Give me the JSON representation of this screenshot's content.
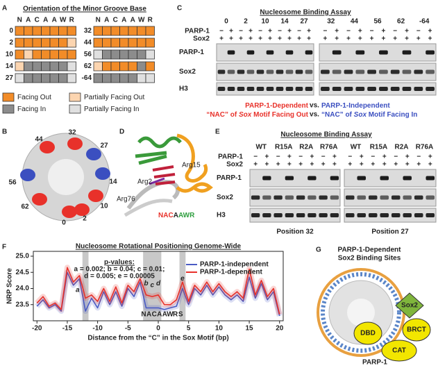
{
  "panel_labels": [
    "A",
    "B",
    "C",
    "D",
    "E",
    "F",
    "G"
  ],
  "panel_a": {
    "title": "Orientation of the Minor Groove Base",
    "motif_letters": [
      "N",
      "A",
      "C",
      "A",
      "A",
      "W",
      "R"
    ],
    "motif_colors": [
      "#e8312a",
      "#e8312a",
      "#e8312a",
      "#222222",
      "#2e9e3e",
      "#2e9e3e",
      "#2e9e3e"
    ],
    "rows_left": [
      {
        "label": "0",
        "color": "#e8312a",
        "boxes": [
          "#f28c28",
          "#f28c28",
          "#f28c28",
          "#f28c28",
          "#f28c28",
          "#f28c28",
          "#f28c28"
        ]
      },
      {
        "label": "2",
        "color": "#e8312a",
        "boxes": [
          "#f28c28",
          "#f28c28",
          "#f28c28",
          "#f28c28",
          "#f28c28",
          "#f28c28",
          "#fcd5b0"
        ]
      },
      {
        "label": "10",
        "color": "#e8312a",
        "boxes": [
          "#f28c28",
          "#fcd5b0",
          "#f28c28",
          "#f28c28",
          "#f28c28",
          "#f28c28",
          "#f28c28"
        ]
      },
      {
        "label": "14",
        "color": "#3b4fc0",
        "boxes": [
          "#fcd5b0",
          "#8c8c8c",
          "#8c8c8c",
          "#8c8c8c",
          "#8c8c8c",
          "#8c8c8c",
          "#e0e0e0"
        ]
      },
      {
        "label": "27",
        "color": "#3b4fc0",
        "boxes": [
          "#e0e0e0",
          "#8c8c8c",
          "#8c8c8c",
          "#8c8c8c",
          "#8c8c8c",
          "#8c8c8c",
          "#e0e0e0"
        ]
      }
    ],
    "rows_right": [
      {
        "label": "32",
        "color": "#e8312a",
        "boxes": [
          "#f28c28",
          "#f28c28",
          "#f28c28",
          "#f28c28",
          "#f28c28",
          "#f28c28",
          "#f28c28"
        ]
      },
      {
        "label": "44",
        "color": "#e8312a",
        "boxes": [
          "#f28c28",
          "#f28c28",
          "#f28c28",
          "#f28c28",
          "#f28c28",
          "#f28c28",
          "#f28c28"
        ]
      },
      {
        "label": "56",
        "color": "#3b4fc0",
        "boxes": [
          "#e0e0e0",
          "#8c8c8c",
          "#8c8c8c",
          "#8c8c8c",
          "#8c8c8c",
          "#8c8c8c",
          "#e0e0e0"
        ]
      },
      {
        "label": "62",
        "color": "#3b4fc0",
        "boxes": [
          "#fcd5b0",
          "#f28c28",
          "#f28c28",
          "#f28c28",
          "#f28c28",
          "#8c8c8c",
          "#f28c28"
        ]
      },
      {
        "label": "-64",
        "color": "#3b4fc0",
        "boxes": [
          "#8c8c8c",
          "#8c8c8c",
          "#8c8c8c",
          "#8c8c8c",
          "#8c8c8c",
          "#e0e0e0",
          "#e0e0e0"
        ]
      }
    ],
    "legend": [
      {
        "label": "Facing Out",
        "color": "#f28c28"
      },
      {
        "label": "Partially Facing Out",
        "color": "#fcd5b0"
      },
      {
        "label": "Facing In",
        "color": "#8c8c8c"
      },
      {
        "label": "Partially Facing In",
        "color": "#e0e0e0"
      }
    ]
  },
  "panel_b": {
    "sites": [
      {
        "label": "32",
        "color": "#e8312a"
      },
      {
        "label": "44",
        "color": "#e8312a"
      },
      {
        "label": "27",
        "color": "#3b4fc0"
      },
      {
        "label": "56",
        "color": "#3b4fc0"
      },
      {
        "label": "14",
        "color": "#3b4fc0"
      },
      {
        "label": "62",
        "color": "#e8312a"
      },
      {
        "label": "10",
        "color": "#e8312a"
      },
      {
        "label": "0",
        "color": "#e8312a"
      },
      {
        "label": "2",
        "color": "#e8312a"
      }
    ]
  },
  "panel_c": {
    "title": "Nucleosome Binding Assay",
    "positions": [
      {
        "label": "0",
        "color": "#e8312a"
      },
      {
        "label": "2",
        "color": "#e8312a"
      },
      {
        "label": "10",
        "color": "#e8312a"
      },
      {
        "label": "14",
        "color": "#3b4fc0"
      },
      {
        "label": "27",
        "color": "#3b4fc0"
      },
      {
        "label": "32",
        "color": "#e8312a"
      },
      {
        "label": "44",
        "color": "#e8312a"
      },
      {
        "label": "56",
        "color": "#3b4fc0"
      },
      {
        "label": "62",
        "color": "#e8312a"
      },
      {
        "label": "-64",
        "color": "#3b4fc0"
      }
    ],
    "treatment_rows": [
      "PARP-1",
      "Sox2"
    ],
    "parp_signs": [
      "−",
      "+"
    ],
    "sox_sign": "+",
    "blot_rows": [
      "PARP-1",
      "Sox2",
      "H3"
    ],
    "captions": [
      {
        "left": [
          {
            "text": "PARP-1-Dependent"
          }
        ],
        "mid": "vs.",
        "right": [
          {
            "text": "PARP-1-Independent"
          }
        ]
      },
      {
        "left": [
          {
            "text": "“NAC” of "
          },
          {
            "text": "Sox",
            "italic": true
          },
          {
            "text": " Motif Facing Out"
          }
        ],
        "mid": "vs.",
        "right": [
          {
            "text": "“NAC” of "
          },
          {
            "text": "Sox",
            "italic": true
          },
          {
            "text": " Motif Facing In"
          }
        ]
      }
    ],
    "left_color": "#e8312a",
    "right_color": "#3b4fc0"
  },
  "panel_d": {
    "labels": [
      "Arg2",
      "Arg15",
      "Arg76"
    ],
    "motif_letters": [
      "N",
      "A",
      "C",
      "A",
      "A",
      "W",
      "R"
    ],
    "motif_colors": [
      "#e8312a",
      "#e8312a",
      "#e8312a",
      "#222222",
      "#2e9e3e",
      "#2e9e3e",
      "#2e9e3e"
    ]
  },
  "panel_e": {
    "title": "Nucleosome Binding Assay",
    "groups": [
      "WT",
      "R15A",
      "R2A",
      "R76A"
    ],
    "treatment_rows": [
      "PARP-1",
      "Sox2"
    ],
    "parp_signs": [
      "−",
      "+"
    ],
    "sox_sign": "+",
    "blot_rows": [
      "PARP-1",
      "Sox2",
      "H3"
    ],
    "positions": [
      {
        "label": "Position 32",
        "color": "#e8312a"
      },
      {
        "label": "Position 27",
        "color": "#3b4fc0"
      }
    ]
  },
  "panel_g": {
    "title_lines": [
      "PARP-1-Dependent",
      "Sox2 Binding Sites"
    ],
    "title_color": "#e8312a",
    "domains": [
      "Sox2",
      "DBD",
      "BRCT",
      "CAT"
    ],
    "protein": "PARP-1"
  },
  "chart_data": {
    "type": "line",
    "title": "Nucleosome Rotational Positioning Genome-Wide",
    "x": [
      -20,
      -19,
      -18,
      -17,
      -16,
      -15,
      -14,
      -13,
      -12,
      -11,
      -10,
      -9,
      -8,
      -7,
      -6,
      -5,
      -4,
      -3,
      -2,
      -1,
      0,
      1,
      2,
      3,
      4,
      5,
      6,
      7,
      8,
      9,
      10,
      11,
      12,
      13,
      14,
      15,
      16,
      17,
      18,
      19,
      20
    ],
    "series": [
      {
        "name": "PARP-1-independent",
        "color": "#4a5bc4",
        "values": [
          23.45,
          23.65,
          23.4,
          23.5,
          23.3,
          24.5,
          24.1,
          24.3,
          23.3,
          23.7,
          23.4,
          23.9,
          23.5,
          23.9,
          23.45,
          24.0,
          23.75,
          24.2,
          23.4,
          23.4,
          23.4,
          23.35,
          23.4,
          23.45,
          24.0,
          23.5,
          24.0,
          23.8,
          24.1,
          23.8,
          24.05,
          23.8,
          23.65,
          23.8,
          23.6,
          24.35,
          23.7,
          24.15,
          23.65,
          23.9,
          23.15
        ]
      },
      {
        "name": "PARP-1-dependent",
        "color": "#e8312a",
        "values": [
          23.55,
          23.75,
          23.45,
          23.55,
          23.35,
          24.65,
          24.2,
          24.4,
          23.7,
          23.8,
          23.6,
          24.0,
          23.6,
          24.05,
          23.55,
          24.1,
          23.9,
          24.3,
          23.8,
          23.75,
          23.8,
          23.5,
          23.5,
          23.65,
          24.2,
          23.6,
          24.1,
          23.9,
          24.2,
          23.9,
          24.15,
          23.9,
          23.75,
          23.9,
          23.7,
          24.6,
          23.8,
          24.25,
          23.75,
          24.0,
          23.2
        ]
      }
    ],
    "xlim": [
      -20.6,
      20.6
    ],
    "xticks": [
      -20,
      -15,
      -10,
      -5,
      0,
      5,
      10,
      15,
      20
    ],
    "ylim": [
      23.0,
      25.15
    ],
    "yticks": [
      23.5,
      {
        "value": 24,
        "label": "24.0"
      },
      24.5,
      {
        "value": 25,
        "label": "25.0"
      }
    ],
    "ylabel": "NRP Score",
    "xlabel": "Distance from the “C” in the Sox Motif (bp)",
    "shaded_ranges": [
      [
        -12.5,
        -11.5
      ],
      [
        -2.5,
        0.5
      ],
      [
        3.5,
        4.5
      ]
    ],
    "p_values": [
      "p-values:",
      "a = 0.002; b = 0.04; c = 0.01;",
      "d = 0.005; e = 0.00005"
    ],
    "letters": [
      "a",
      "b",
      "c",
      "d",
      "e"
    ],
    "motif_letters": [
      "N",
      "A",
      "C",
      "A",
      "A",
      "W",
      "R",
      "S"
    ],
    "motif_colors": [
      "#222222",
      "#222222",
      "#e8312a",
      "#222222",
      "#222222",
      "#222222",
      "#222222",
      "#222222"
    ],
    "legend_position": "top-right"
  }
}
